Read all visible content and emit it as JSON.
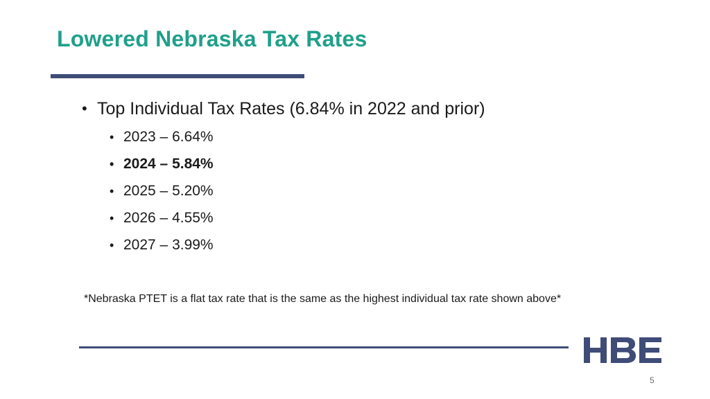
{
  "slide": {
    "title": "Lowered Nebraska Tax Rates",
    "main_bullet": {
      "marker": "•",
      "text": "Top Individual Tax Rates (6.84% in 2022 and prior)"
    },
    "sub_bullets": [
      {
        "marker": "•",
        "text": "2023 – 6.64%"
      },
      {
        "marker": "•",
        "text": "2024 – 5.84%"
      },
      {
        "marker": "•",
        "text": "2025 – 5.20%"
      },
      {
        "marker": "•",
        "text": "2026 – 4.55%"
      },
      {
        "marker": "•",
        "text": "2027 – 3.99%"
      }
    ],
    "note": "*Nebraska PTET is a flat tax rate that is the same as the highest individual tax rate shown above*",
    "logo_text": "HBE",
    "page_number": "5"
  },
  "colors": {
    "title": "#1fa08b",
    "rule": "#3f4c78",
    "logo": "#3f4c78",
    "text": "#1a1a1a"
  }
}
